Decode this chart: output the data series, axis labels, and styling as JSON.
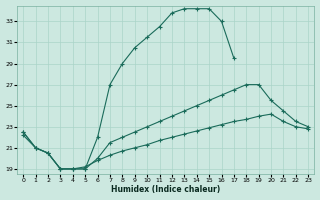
{
  "xlabel": "Humidex (Indice chaleur)",
  "bg_color": "#cce8e0",
  "grid_color": "#aad4c8",
  "line_color": "#1a6b5a",
  "xlim": [
    -0.5,
    23.5
  ],
  "ylim": [
    18.5,
    34.5
  ],
  "xtick_labels": [
    "0",
    "1",
    "2",
    "3",
    "4",
    "5",
    "6",
    "7",
    "8",
    "9",
    "10",
    "11",
    "12",
    "13",
    "14",
    "15",
    "16",
    "17",
    "18",
    "19",
    "20",
    "21",
    "22",
    "23"
  ],
  "xtick_vals": [
    0,
    1,
    2,
    3,
    4,
    5,
    6,
    7,
    8,
    9,
    10,
    11,
    12,
    13,
    14,
    15,
    16,
    17,
    18,
    19,
    20,
    21,
    22,
    23
  ],
  "ytick_vals": [
    19,
    21,
    23,
    25,
    27,
    29,
    31,
    33
  ],
  "series": [
    {
      "x": [
        0,
        1,
        2,
        3,
        4,
        5,
        6,
        7,
        8,
        9,
        10,
        11,
        12,
        13,
        14,
        15,
        16,
        17,
        18,
        20,
        21,
        22,
        23
      ],
      "y": [
        22.5,
        21.0,
        20.5,
        19.0,
        19.0,
        19.0,
        22.0,
        27.0,
        29.0,
        30.5,
        31.5,
        32.5,
        33.8,
        34.2,
        34.2,
        34.2,
        33.0,
        29.5,
        null,
        null,
        null,
        null,
        null
      ]
    },
    {
      "x": [
        0,
        1,
        2,
        3,
        4,
        5,
        6,
        7,
        8,
        9,
        10,
        11,
        12,
        13,
        14,
        15,
        16,
        17,
        18,
        19,
        20,
        21,
        22,
        23
      ],
      "y": [
        22.5,
        21.0,
        20.5,
        19.0,
        19.0,
        19.0,
        20.0,
        21.5,
        22.0,
        22.5,
        23.0,
        23.5,
        24.0,
        24.5,
        25.0,
        25.5,
        26.0,
        26.5,
        27.0,
        27.0,
        25.5,
        24.5,
        23.5,
        23.0
      ]
    },
    {
      "x": [
        0,
        1,
        2,
        3,
        4,
        5,
        6,
        7,
        8,
        9,
        10,
        11,
        12,
        13,
        14,
        15,
        16,
        17,
        18,
        19,
        20,
        21,
        22,
        23
      ],
      "y": [
        22.2,
        21.0,
        20.5,
        19.0,
        19.0,
        19.2,
        19.8,
        20.3,
        20.7,
        21.0,
        21.3,
        21.7,
        22.0,
        22.3,
        22.6,
        22.9,
        23.2,
        23.5,
        23.7,
        24.0,
        24.2,
        23.5,
        23.0,
        22.8
      ]
    }
  ]
}
